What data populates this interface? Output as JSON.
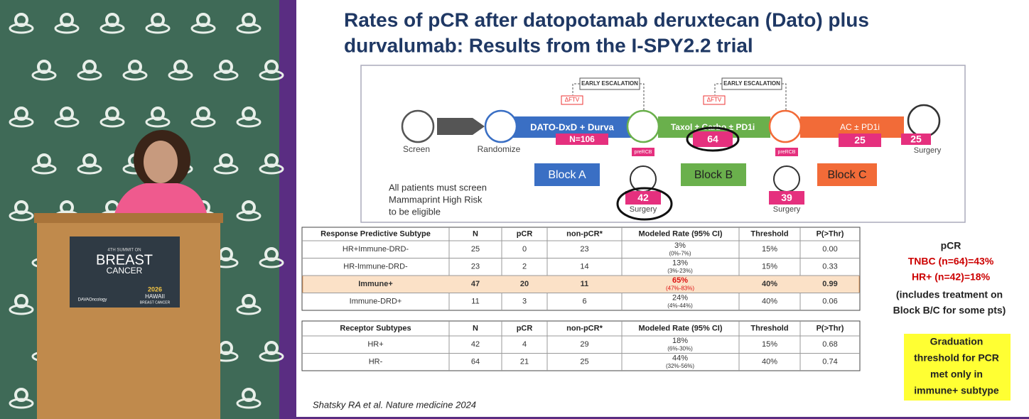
{
  "video": {
    "sign": {
      "edition": "4TH SUMMIT ON",
      "line1": "BREAST",
      "line2": "CANCER",
      "sponsor": "DAVAOncology",
      "event_year": "2026",
      "event_name": "HAWAII",
      "event_sub": "BREAST CANCER"
    }
  },
  "slide": {
    "title": [
      "Rates of pCR after datopotamab deruxtecan (Dato) plus",
      "durvalumab: Results from the I-SPY2.2 trial"
    ],
    "diagram": {
      "screen": "Screen",
      "randomize": "Randomize",
      "arm_a": "DATO-DxD + Durva",
      "n_a": "N=106",
      "escalation": [
        "EARLY ESCALATION",
        "EARLY ESCALATION"
      ],
      "dftv": [
        "ΔFTV",
        "ΔFTV"
      ],
      "arm_b": "Taxol ± Carbo ± PD1i",
      "n_b": "64",
      "arm_c": "AC ± PD1i",
      "n_c": "25",
      "final_n": "25",
      "final_surgery": "Surgery",
      "prercb": [
        "preRCB",
        "preRCB"
      ],
      "surgery_a": {
        "n": "42",
        "label": "Surgery"
      },
      "surgery_b": {
        "n": "39",
        "label": "Surgery"
      },
      "blocks": [
        "Block A",
        "Block B",
        "Block C"
      ],
      "eligibility": [
        "All patients must screen",
        "Mammaprint High Risk",
        "to be eligible"
      ]
    },
    "table1": {
      "header": [
        "Response Predictive Subtype",
        "N",
        "pCR",
        "non-pCR*",
        "Modeled Rate (95% CI)",
        "Threshold",
        "P(>Thr)"
      ],
      "rows": [
        {
          "cells": [
            "HR+Immune-DRD-",
            "25",
            "0",
            "23",
            "15%",
            "0.00"
          ],
          "rate": "3%",
          "ci": "(0%-7%)"
        },
        {
          "cells": [
            "HR-Immune-DRD-",
            "23",
            "2",
            "14",
            "15%",
            "0.33"
          ],
          "rate": "13%",
          "ci": "(3%-23%)"
        },
        {
          "cells": [
            "Immune+",
            "47",
            "20",
            "11",
            "40%",
            "0.99"
          ],
          "rate": "65%",
          "ci": "(47%-83%)"
        },
        {
          "cells": [
            "Immune-DRD+",
            "11",
            "3",
            "6",
            "40%",
            "0.06"
          ],
          "rate": "24%",
          "ci": "(4%-44%)"
        }
      ]
    },
    "table2": {
      "header": [
        "Receptor Subtypes",
        "N",
        "pCR",
        "non-pCR*",
        "Modeled Rate (95% CI)",
        "Threshold",
        "P(>Thr)"
      ],
      "rows": [
        {
          "cells": [
            "HR+",
            "42",
            "4",
            "29",
            "15%",
            "0.68"
          ],
          "rate": "18%",
          "ci": "(6%-30%)"
        },
        {
          "cells": [
            "HR-",
            "64",
            "21",
            "25",
            "40%",
            "0.74"
          ],
          "rate": "44%",
          "ci": "(32%-56%)"
        }
      ]
    },
    "notes": {
      "heading": "pCR",
      "tnbc": "TNBC (n=64)=43%",
      "hr": "HR+ (n=42)=18%",
      "caveat": [
        "(includes treatment on",
        "Block B/C for some pts)"
      ]
    },
    "graduation": [
      "Graduation",
      "threshold for PCR",
      "met only in",
      "immune+ subtype"
    ],
    "citation": "Shatsky RA et al. Nature medicine 2024"
  }
}
